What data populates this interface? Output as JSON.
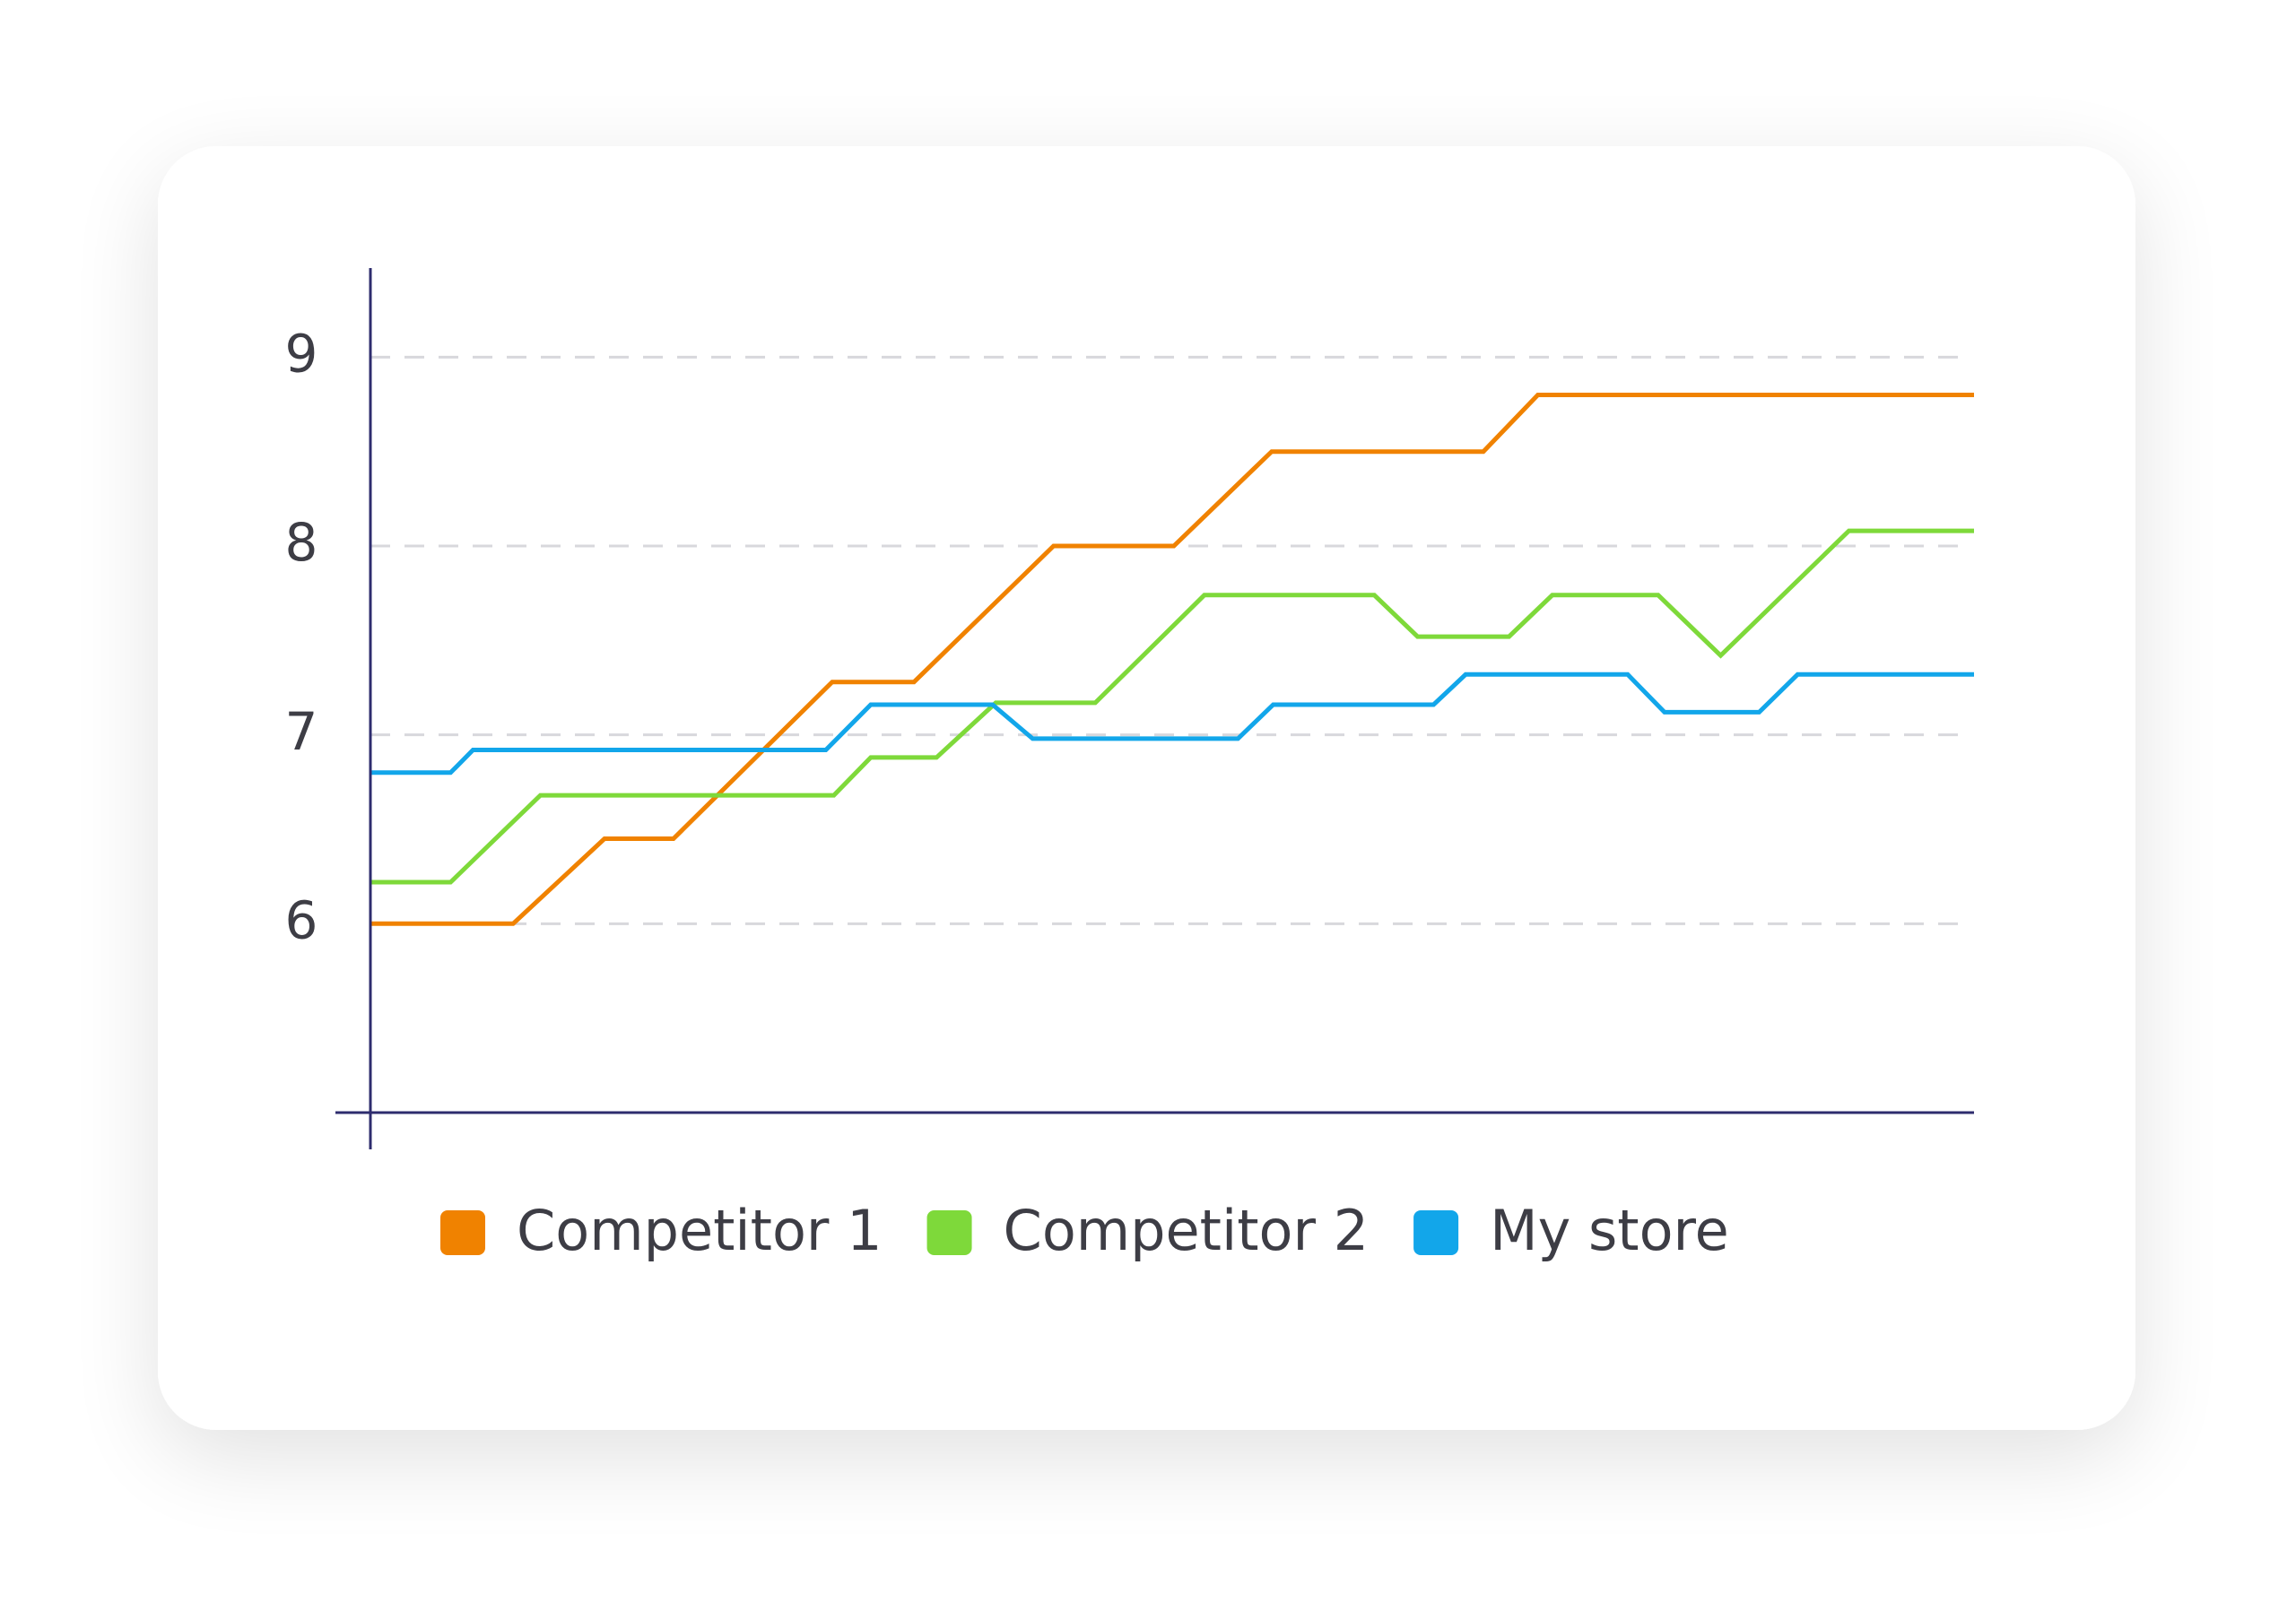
{
  "chart_data": {
    "type": "line",
    "xlim": [
      0,
      100
    ],
    "ylim": [
      5,
      9.5
    ],
    "yticks": [
      6,
      7,
      8,
      9
    ],
    "grid": true,
    "series": [
      {
        "name": "Competitor 1",
        "color": "#f08200",
        "x": [
          0,
          8.9,
          14.6,
          18.9,
          28.8,
          33.9,
          42.6,
          50.1,
          56.2,
          69.4,
          72.8,
          100
        ],
        "values": [
          6.0,
          6.0,
          6.45,
          6.45,
          7.28,
          7.28,
          8.0,
          8.0,
          8.5,
          8.5,
          8.8,
          8.8
        ]
      },
      {
        "name": "Competitor 2",
        "color": "#7ed93a",
        "x": [
          0,
          5.0,
          10.6,
          28.9,
          31.2,
          35.3,
          39.0,
          45.2,
          52.0,
          62.6,
          65.3,
          71.0,
          73.7,
          80.3,
          84.2,
          92.2,
          100
        ],
        "values": [
          6.22,
          6.22,
          6.68,
          6.68,
          6.88,
          6.88,
          7.17,
          7.17,
          7.74,
          7.74,
          7.52,
          7.52,
          7.74,
          7.74,
          7.42,
          8.08,
          8.08
        ]
      },
      {
        "name": "My store",
        "color": "#12a6ea",
        "x": [
          0,
          5.0,
          6.4,
          28.4,
          31.2,
          38.8,
          41.3,
          54.1,
          56.3,
          66.3,
          68.3,
          78.4,
          80.7,
          86.6,
          89.0,
          100
        ],
        "values": [
          6.8,
          6.8,
          6.92,
          6.92,
          7.16,
          7.16,
          6.98,
          6.98,
          7.16,
          7.16,
          7.32,
          7.32,
          7.12,
          7.12,
          7.32,
          7.32
        ]
      }
    ]
  }
}
